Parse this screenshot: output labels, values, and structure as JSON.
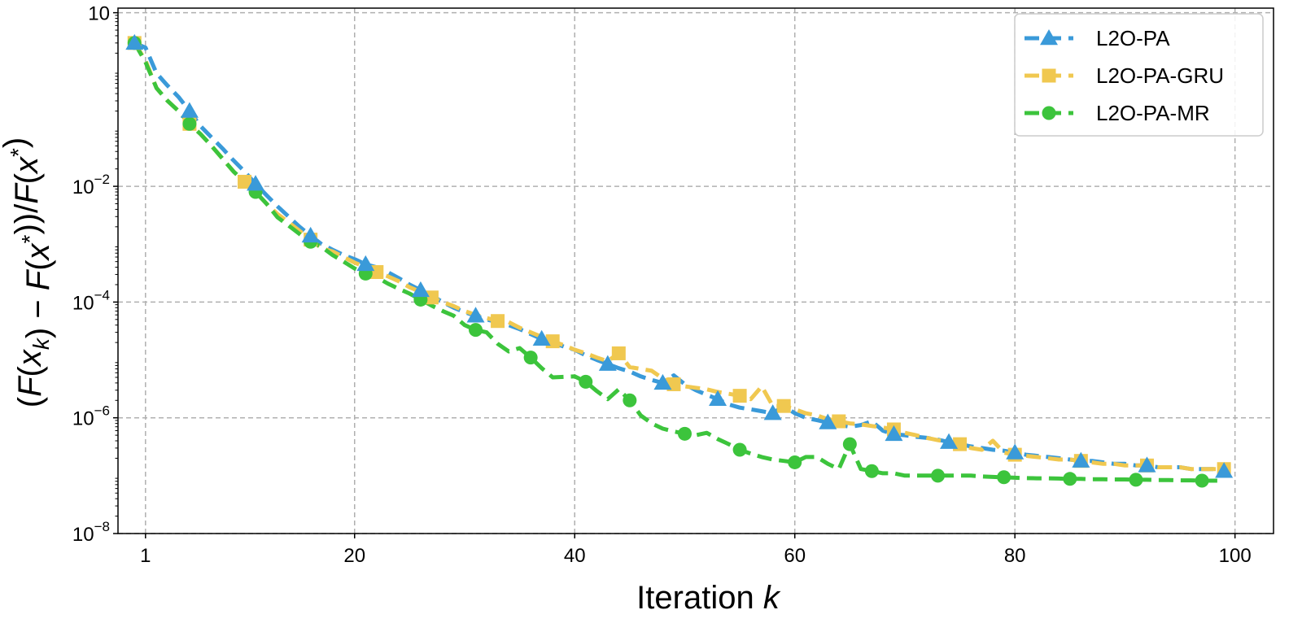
{
  "chart_data": {
    "type": "line",
    "xlabel": "Iteration k",
    "ylabel": "(F(x_k) − F(x*))/F(x*)",
    "xscale": "linear",
    "yscale": "log",
    "xlim": [
      -1.5,
      103.5
    ],
    "ylim": [
      1e-08,
      12
    ],
    "xticks": [
      1,
      20,
      40,
      60,
      80,
      100
    ],
    "yticks": [
      {
        "value": 10,
        "base": "10",
        "exp": ""
      },
      {
        "value": 0.01,
        "base": "10",
        "exp": "−2"
      },
      {
        "value": 0.0001,
        "base": "10",
        "exp": "−4"
      },
      {
        "value": 1e-06,
        "base": "10",
        "exp": "−6"
      },
      {
        "value": 1e-08,
        "base": "10",
        "exp": "−8"
      }
    ],
    "grid": true,
    "legend_position": "top-right",
    "series": [
      {
        "name": "L2O-PA",
        "color": "#3a9ad9",
        "marker": "triangle",
        "x": [
          0,
          1,
          2,
          3,
          4,
          5,
          6,
          7,
          8,
          9,
          10,
          11,
          12,
          13,
          14,
          15,
          16,
          17,
          18,
          19,
          20,
          21,
          22,
          23,
          24,
          25,
          26,
          27,
          28,
          29,
          30,
          31,
          32,
          33,
          34,
          35,
          36,
          37,
          38,
          39,
          40,
          41,
          42,
          43,
          44,
          45,
          46,
          47,
          48,
          49,
          50,
          51,
          52,
          53,
          54,
          55,
          56,
          57,
          58,
          59,
          60,
          61,
          62,
          63,
          64,
          65,
          66,
          67,
          68,
          69,
          70,
          71,
          72,
          73,
          74,
          75,
          76,
          77,
          78,
          79,
          80,
          81,
          82,
          83,
          84,
          85,
          86,
          87,
          88,
          89,
          90,
          91,
          92,
          93,
          94,
          95,
          96,
          97,
          98,
          99
        ],
        "y": [
          3.0,
          2.5,
          0.9,
          0.55,
          0.35,
          0.2,
          0.11,
          0.07,
          0.045,
          0.028,
          0.018,
          0.011,
          0.007,
          0.0045,
          0.003,
          0.002,
          0.0014,
          0.001,
          0.0008,
          0.00065,
          0.00055,
          0.00045,
          0.0004,
          0.00033,
          0.00026,
          0.0002,
          0.00016,
          0.00013,
          0.0001,
          8e-05,
          6.7e-05,
          5.8e-05,
          5e-05,
          4.5e-05,
          4e-05,
          3.4e-05,
          2.8e-05,
          2.3e-05,
          2e-05,
          1.7e-05,
          1.5e-05,
          1.2e-05,
          1e-05,
          8.5e-06,
          7.2e-06,
          6.3e-06,
          5.2e-06,
          4.5e-06,
          4e-06,
          5.4e-06,
          3.8e-06,
          3e-06,
          2.5e-06,
          2.1e-06,
          1.7e-06,
          1.5e-06,
          1.4e-06,
          1.3e-06,
          1.2e-06,
          1.6e-06,
          1.2e-06,
          1e-06,
          9.1e-07,
          8.3e-07,
          7.6e-07,
          7e-07,
          7.5e-07,
          8.7e-07,
          6e-07,
          5.2e-07,
          5e-07,
          4.7e-07,
          4.5e-07,
          4.2e-07,
          3.8e-07,
          3.5e-07,
          3.2e-07,
          3e-07,
          2.8e-07,
          2.7e-07,
          2.5e-07,
          2.3e-07,
          2.2e-07,
          2.1e-07,
          2e-07,
          1.9e-07,
          1.8e-07,
          1.8e-07,
          1.7e-07,
          1.6e-07,
          1.6e-07,
          1.5e-07,
          1.5e-07,
          1.4e-07,
          1.4e-07,
          1.4e-07,
          1.3e-07,
          1.3e-07,
          1.3e-07,
          1.2e-07
        ]
      },
      {
        "name": "L2O-PA-GRU",
        "color": "#f0c850",
        "marker": "square",
        "x": [
          0,
          1,
          2,
          3,
          4,
          5,
          6,
          7,
          8,
          9,
          10,
          11,
          12,
          13,
          14,
          15,
          16,
          17,
          18,
          19,
          20,
          21,
          22,
          23,
          24,
          25,
          26,
          27,
          28,
          29,
          30,
          31,
          32,
          33,
          34,
          35,
          36,
          37,
          38,
          39,
          40,
          41,
          42,
          43,
          44,
          45,
          46,
          47,
          48,
          49,
          50,
          51,
          52,
          53,
          54,
          55,
          56,
          57,
          58,
          59,
          60,
          61,
          62,
          63,
          64,
          65,
          66,
          67,
          68,
          69,
          70,
          71,
          72,
          73,
          74,
          75,
          76,
          77,
          78,
          79,
          80,
          81,
          82,
          83,
          84,
          85,
          86,
          87,
          88,
          89,
          90,
          91,
          92,
          93,
          94,
          95,
          96,
          97,
          98,
          99
        ],
        "y": [
          3.0,
          1.5,
          0.5,
          0.3,
          0.2,
          0.12,
          0.08,
          0.05,
          0.03,
          0.018,
          0.012,
          0.008,
          0.005,
          0.0033,
          0.0024,
          0.0017,
          0.0012,
          0.00085,
          0.00075,
          0.0006,
          0.00048,
          0.0004,
          0.00033,
          0.00028,
          0.00023,
          0.00018,
          0.00015,
          0.00012,
          0.0001,
          8.5e-05,
          7e-05,
          6e-05,
          5.3e-05,
          4.7e-05,
          4.5e-05,
          3.6e-05,
          3e-05,
          2.5e-05,
          2.1e-05,
          1.8e-05,
          1.5e-05,
          1.3e-05,
          1.1e-05,
          9.5e-06,
          1.3e-05,
          7.5e-06,
          7e-06,
          6.5e-06,
          4.8e-06,
          3.8e-06,
          3.5e-06,
          3.3e-06,
          3.1e-06,
          2.8e-06,
          2.6e-06,
          2.4e-06,
          2.1e-06,
          3.5e-06,
          1.6e-06,
          1.6e-06,
          1.4e-06,
          1.2e-06,
          1.1e-06,
          9.5e-07,
          8.7e-07,
          8e-07,
          7.7e-07,
          7.2e-07,
          6.8e-07,
          6.3e-07,
          5.5e-07,
          5e-07,
          4.5e-07,
          4.1e-07,
          3.8e-07,
          3.5e-07,
          3e-07,
          2.8e-07,
          4e-07,
          2.5e-07,
          2.3e-07,
          2.2e-07,
          2.1e-07,
          2e-07,
          1.9e-07,
          1.9e-07,
          1.8e-07,
          1.7e-07,
          1.6e-07,
          1.6e-07,
          1.5e-07,
          1.5e-07,
          1.5e-07,
          1.4e-07,
          1.4e-07,
          1.4e-07,
          1.3e-07,
          1.3e-07,
          1.3e-07,
          1.3e-07
        ]
      },
      {
        "name": "L2O-PA-MR",
        "color": "#3cc43c",
        "marker": "circle",
        "x": [
          0,
          1,
          2,
          3,
          4,
          5,
          6,
          7,
          8,
          9,
          10,
          11,
          12,
          13,
          14,
          15,
          16,
          17,
          18,
          19,
          20,
          21,
          22,
          23,
          24,
          25,
          26,
          27,
          28,
          29,
          30,
          31,
          32,
          33,
          34,
          35,
          36,
          37,
          38,
          39,
          40,
          41,
          42,
          43,
          44,
          45,
          46,
          47,
          48,
          49,
          50,
          51,
          52,
          53,
          54,
          55,
          56,
          57,
          58,
          59,
          60,
          61,
          62,
          63,
          64,
          65,
          66,
          67,
          68,
          69,
          70,
          71,
          72,
          73,
          74,
          75,
          76,
          77,
          78,
          79,
          80,
          81,
          82,
          83,
          84,
          85,
          86,
          87,
          88,
          89,
          90,
          91,
          92,
          93,
          94,
          95,
          96,
          97,
          98,
          99
        ],
        "y": [
          3.0,
          1.4,
          0.5,
          0.3,
          0.2,
          0.12,
          0.08,
          0.05,
          0.03,
          0.018,
          0.012,
          0.008,
          0.005,
          0.0029,
          0.0021,
          0.0015,
          0.0011,
          0.0009,
          0.00065,
          0.0005,
          0.00038,
          0.00031,
          0.00027,
          0.00021,
          0.00017,
          0.00014,
          0.00011,
          8.7e-05,
          7e-05,
          5.8e-05,
          4e-05,
          3.3e-05,
          3e-05,
          1.9e-05,
          1.4e-05,
          1.6e-05,
          1.1e-05,
          7.2e-06,
          5e-06,
          5.1e-06,
          5.2e-06,
          4.2e-06,
          2.9e-06,
          2.1e-06,
          3.1e-06,
          2e-06,
          1.1e-06,
          8e-07,
          6.5e-07,
          5.8e-07,
          5.3e-07,
          5e-07,
          5.5e-07,
          4.3e-07,
          3.5e-07,
          2.8e-07,
          2.4e-07,
          2.1e-07,
          1.9e-07,
          1.8e-07,
          1.7e-07,
          2.1e-07,
          2.1e-07,
          1.6e-07,
          1.3e-07,
          3.5e-07,
          1.3e-07,
          1.2e-07,
          1.1e-07,
          1.1e-07,
          1e-07,
          1e-07,
          1e-07,
          1e-07,
          1e-07,
          1e-07,
          1e-07,
          9.7e-08,
          9.5e-08,
          9.4e-08,
          9.2e-08,
          9.1e-08,
          9e-08,
          9e-08,
          8.9e-08,
          8.8e-08,
          8.8e-08,
          8.7e-08,
          8.7e-08,
          8.6e-08,
          8.6e-08,
          8.5e-08,
          8.5e-08,
          8.4e-08,
          8.4e-08,
          8.3e-08,
          8.3e-08,
          8.2e-08,
          8.2e-08,
          8.2e-08
        ]
      }
    ],
    "markers": [
      {
        "series": 0,
        "x": [
          0,
          5,
          11,
          16,
          21,
          26,
          31,
          37,
          43,
          48,
          53,
          58,
          63,
          69,
          74,
          80,
          86,
          92,
          99
        ]
      },
      {
        "series": 1,
        "x": [
          0,
          5,
          10,
          16,
          22,
          27,
          33,
          38,
          44,
          49,
          55,
          59,
          64,
          69,
          75,
          80,
          86,
          92,
          99
        ]
      },
      {
        "series": 2,
        "x": [
          0,
          5,
          11,
          16,
          21,
          26,
          31,
          36,
          41,
          45,
          50,
          55,
          60,
          65,
          67,
          73,
          79,
          85,
          91,
          97
        ]
      }
    ]
  }
}
